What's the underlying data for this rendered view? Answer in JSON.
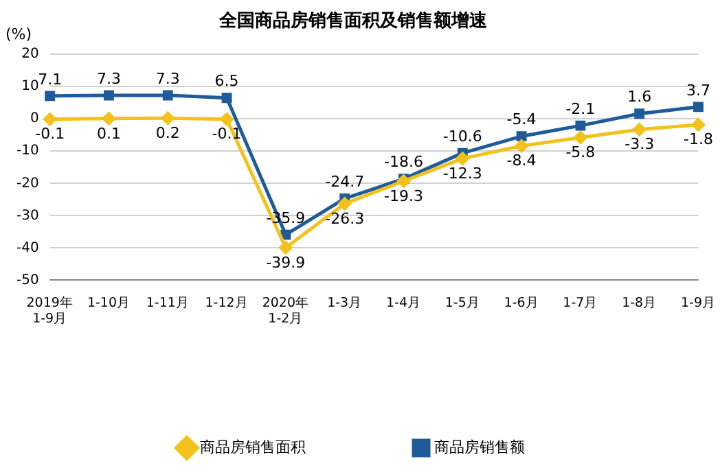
{
  "chart_data": {
    "type": "line",
    "title": "全国商品房销售面积及销售额增速",
    "ylabel": "(%)",
    "categories": [
      "2019年\n1-9月",
      "1-10月",
      "1-11月",
      "1-12月",
      "2020年\n1-2月",
      "1-3月",
      "1-4月",
      "1-5月",
      "1-6月",
      "1-7月",
      "1-8月",
      "1-9月"
    ],
    "series": [
      {
        "name": "商品房销售面积",
        "color": "#f2c21b",
        "marker": "diamond",
        "values": [
          -0.1,
          0.1,
          0.2,
          -0.1,
          -39.9,
          -26.3,
          -19.3,
          -12.3,
          -8.4,
          -5.8,
          -3.3,
          -1.8
        ]
      },
      {
        "name": "商品房销售额",
        "color": "#1f5b99",
        "marker": "square",
        "values": [
          7.1,
          7.3,
          7.3,
          6.5,
          -35.9,
          -24.7,
          -18.6,
          -10.6,
          -5.4,
          -2.1,
          1.6,
          3.7
        ]
      }
    ],
    "ylim": [
      -50,
      20
    ],
    "yticks": [
      -50,
      -40,
      -30,
      -20,
      -10,
      0,
      10,
      20
    ],
    "grid": "y",
    "legend": "bottom",
    "data_labels": true,
    "line_style": "solid"
  }
}
